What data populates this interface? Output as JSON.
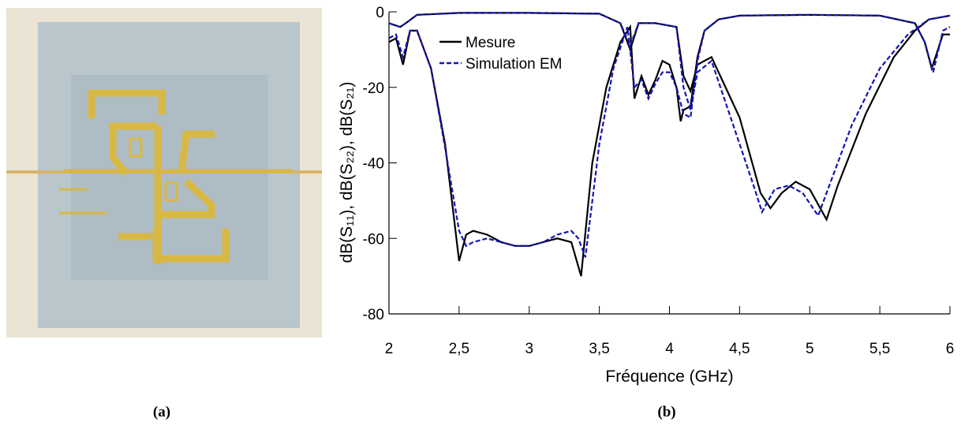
{
  "chart_data": {
    "type": "line",
    "xlabel": "Fréquence (GHz)",
    "ylabel": "dB(S₁₁), dB(S₂₂), dB(S₂₁)",
    "xlim": [
      2,
      6
    ],
    "ylim": [
      -80,
      0
    ],
    "xticks": [
      2,
      {
        "value": 2.5,
        "label": "2,5"
      },
      3,
      {
        "value": 3.5,
        "label": "3,5"
      },
      4,
      {
        "value": 4.5,
        "label": "4,5"
      },
      5,
      {
        "value": 5.5,
        "label": "5,5"
      },
      6
    ],
    "yticks": [
      0,
      -20,
      -40,
      -60,
      -80
    ],
    "legend": "upper-left",
    "series": [
      {
        "name": "Mesure",
        "color": "#000000",
        "dash": false,
        "curves": [
          {
            "x": [
              2.0,
              2.05,
              2.1,
              2.15,
              2.2,
              2.3,
              2.4,
              2.5,
              2.55,
              2.6,
              2.7,
              2.8,
              2.9,
              3.0,
              3.1,
              3.2,
              3.3,
              3.37,
              3.45,
              3.55,
              3.65,
              3.72,
              3.75,
              3.8,
              3.85,
              3.9,
              3.95,
              4.0,
              4.05,
              4.08,
              4.1,
              4.15,
              4.2,
              4.25,
              4.35,
              4.5,
              5.0,
              5.5,
              5.75,
              5.82,
              5.87,
              5.95,
              6.0
            ],
            "values": [
              -8,
              -7,
              -14,
              -5,
              -5,
              -15,
              -35,
              -66,
              -59,
              -58,
              -59,
              -61,
              -62,
              -62,
              -61,
              -60,
              -61,
              -70,
              -40,
              -20,
              -8,
              -4,
              -23,
              -17,
              -22,
              -18,
              -13,
              -14,
              -20,
              -29,
              -26,
              -25,
              -12,
              -5,
              -2,
              -1,
              -0.8,
              -1,
              -3,
              -8,
              -15,
              -6,
              -6
            ]
          },
          {
            "x": [
              2.0,
              2.08,
              2.12,
              2.2,
              2.5,
              3.0,
              3.5,
              3.65,
              3.72,
              3.78,
              3.9,
              4.05,
              4.1,
              4.15,
              4.2,
              4.3,
              4.5,
              4.65,
              4.72,
              4.8,
              4.9,
              5.0,
              5.12,
              5.2,
              5.4,
              5.6,
              5.75,
              5.85,
              6.0
            ],
            "values": [
              -3,
              -4,
              -3,
              -0.8,
              -0.3,
              -0.3,
              -0.5,
              -3,
              -10,
              -3,
              -3,
              -4,
              -17,
              -21,
              -14,
              -12,
              -28,
              -48,
              -52,
              -48,
              -45,
              -47,
              -55,
              -46,
              -27,
              -12,
              -5,
              -2,
              -1
            ]
          }
        ]
      },
      {
        "name": "Simulation EM",
        "color": "#1515b5",
        "dash": true,
        "curves": [
          {
            "x": [
              2.0,
              2.05,
              2.1,
              2.15,
              2.2,
              2.3,
              2.4,
              2.5,
              2.55,
              2.6,
              2.7,
              2.8,
              2.9,
              3.0,
              3.1,
              3.2,
              3.3,
              3.35,
              3.4,
              3.5,
              3.6,
              3.7,
              3.75,
              3.8,
              3.85,
              3.9,
              3.95,
              4.0,
              4.05,
              4.1,
              4.15,
              4.2,
              4.25,
              4.35,
              4.5,
              5.0,
              5.5,
              5.75,
              5.82,
              5.88,
              5.95,
              6.0
            ],
            "values": [
              -7,
              -6,
              -12,
              -5,
              -5,
              -15,
              -36,
              -58,
              -62,
              -61,
              -60,
              -61,
              -62,
              -62,
              -61,
              -59,
              -58,
              -60,
              -65,
              -35,
              -15,
              -4,
              -20,
              -18,
              -23,
              -19,
              -16,
              -16,
              -20,
              -27,
              -28,
              -13,
              -5,
              -2,
              -1,
              -0.8,
              -1,
              -3,
              -8,
              -16,
              -5,
              -4
            ]
          },
          {
            "x": [
              2.0,
              2.08,
              2.12,
              2.2,
              2.5,
              3.0,
              3.5,
              3.65,
              3.72,
              3.78,
              3.9,
              4.05,
              4.1,
              4.15,
              4.2,
              4.3,
              4.5,
              4.6,
              4.66,
              4.75,
              4.85,
              4.95,
              5.06,
              5.15,
              5.3,
              5.5,
              5.7,
              5.85,
              6.0
            ],
            "values": [
              -3,
              -4,
              -3,
              -0.8,
              -0.3,
              -0.3,
              -0.5,
              -3,
              -9,
              -3,
              -3,
              -4,
              -20,
              -26,
              -16,
              -13,
              -35,
              -46,
              -53,
              -47,
              -46,
              -48,
              -54,
              -45,
              -30,
              -15,
              -6,
              -2,
              -1
            ]
          }
        ]
      }
    ]
  },
  "captions": [
    "(a)",
    "(b)"
  ]
}
